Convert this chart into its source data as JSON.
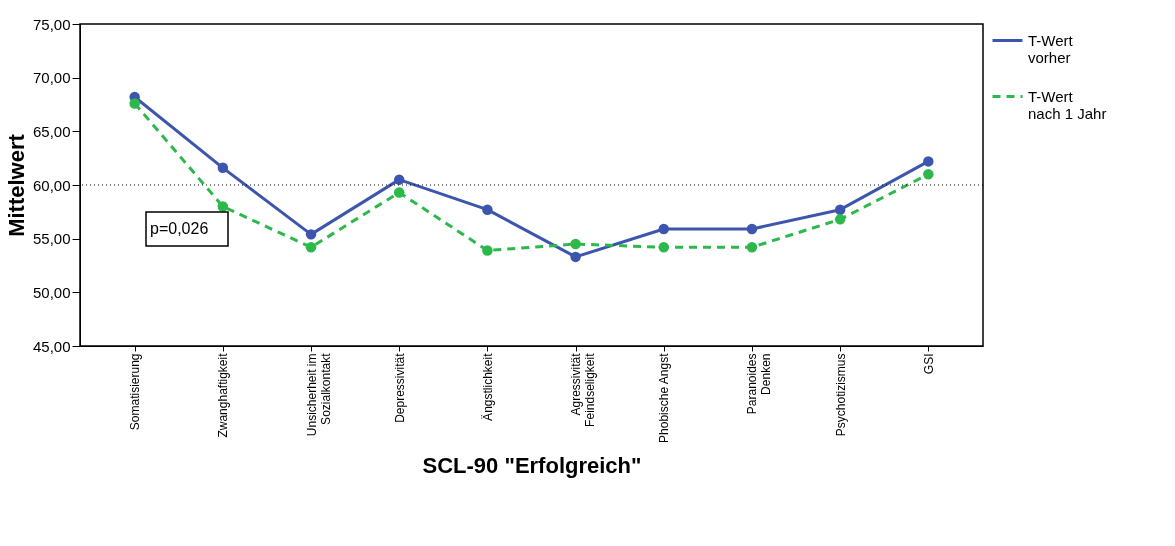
{
  "chart_data": {
    "type": "line",
    "xlabel": "SCL-90 \"Erfolgreich\"",
    "ylabel": "Mittelwert",
    "categories": [
      "Somatisierung",
      "Zwanghaftigkeit",
      "Unsicherheit im\nSozialkontakt",
      "Depressivität",
      "Ängstlichkeit",
      "Agressivität\nFeindseligkeit",
      "Phobische Angst",
      "Paranoides\nDenken",
      "Psychotizismus",
      "GSI"
    ],
    "series": [
      {
        "name": "T-Wert\nvorher",
        "color": "#3d56ad",
        "line_style": "solid",
        "values": [
          68.2,
          61.6,
          55.4,
          60.5,
          57.7,
          53.3,
          55.9,
          55.9,
          57.7,
          62.2
        ]
      },
      {
        "name": "T-Wert\nnach 1 Jahr",
        "color": "#2db84b",
        "line_style": "dashed",
        "values": [
          67.6,
          58.0,
          54.2,
          59.3,
          53.9,
          54.5,
          54.2,
          54.2,
          56.8,
          61.0
        ]
      }
    ],
    "ylim": [
      45,
      75
    ],
    "yticks": [
      {
        "value": 45,
        "label": "45,00"
      },
      {
        "value": 50,
        "label": "50,00"
      },
      {
        "value": 55,
        "label": "55,00"
      },
      {
        "value": 60,
        "label": "60,00"
      },
      {
        "value": 65,
        "label": "65,00"
      },
      {
        "value": 70,
        "label": "70,00"
      },
      {
        "value": 75,
        "label": "75,00"
      }
    ],
    "ref_lines": [
      {
        "axis": "y",
        "value": 60,
        "color": "#000000",
        "line_style": "dotted"
      }
    ],
    "annotations": [
      "p=0,026"
    ],
    "marker": "circle",
    "grid": false,
    "legend": "top right"
  }
}
